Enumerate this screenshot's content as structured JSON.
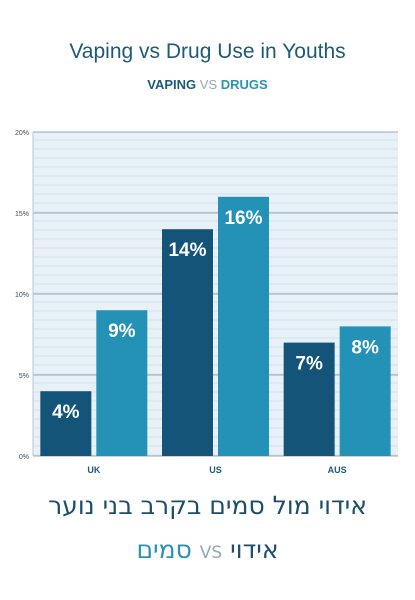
{
  "header": {
    "title": "Vaping vs Drug Use in Youths",
    "legend_vaping": "VAPING",
    "legend_vs": "VS",
    "legend_drugs": "DRUGS"
  },
  "footer": {
    "hebrew_title": "אידוי מול סמים בקרב בני נוער",
    "hebrew_vaping": "אידוי",
    "hebrew_vs": "VS",
    "hebrew_drugs": "סמים"
  },
  "colors": {
    "vaping": "#145478",
    "drugs": "#2492b6",
    "plot_bg": "#e8f1f7",
    "grid": "#9aa8b2"
  },
  "chart_data": {
    "type": "bar",
    "categories": [
      "UK",
      "US",
      "AUS"
    ],
    "series": [
      {
        "name": "VAPING",
        "values": [
          4,
          14,
          7
        ]
      },
      {
        "name": "DRUGS",
        "values": [
          9,
          16,
          8
        ]
      }
    ],
    "data_labels": [
      [
        "4%",
        "14%",
        "7%"
      ],
      [
        "9%",
        "16%",
        "8%"
      ]
    ],
    "y_ticks": [
      "0%",
      "5%",
      "10%",
      "15%",
      "20%"
    ],
    "ylim": [
      0,
      20
    ],
    "grid": true,
    "title": "Vaping vs Drug Use in Youths",
    "xlabel": "",
    "ylabel": ""
  }
}
